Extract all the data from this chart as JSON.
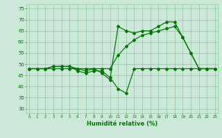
{
  "xlabel": "Humidité relative (%)",
  "bg_color": "#cce8d8",
  "grid_color": "#99ccaa",
  "line_color": "#007700",
  "x_values": [
    0,
    1,
    2,
    3,
    4,
    5,
    6,
    7,
    8,
    9,
    10,
    11,
    12,
    13,
    14,
    15,
    16,
    17,
    18,
    19,
    20,
    21,
    22,
    23
  ],
  "series1": [
    48,
    48,
    48,
    49,
    49,
    49,
    47,
    46,
    47,
    47,
    44,
    39,
    37,
    48,
    48,
    48,
    48,
    48,
    48,
    48,
    48,
    48,
    48,
    48
  ],
  "series2": [
    48,
    48,
    48,
    49,
    49,
    49,
    48,
    47,
    48,
    46,
    43,
    67,
    65,
    64,
    65,
    65,
    67,
    69,
    69,
    62,
    55,
    48,
    48,
    48
  ],
  "series3": [
    48,
    48,
    48,
    48,
    48,
    48,
    48,
    48,
    48,
    48,
    48,
    54,
    58,
    61,
    63,
    64,
    65,
    66,
    67,
    62,
    55,
    48,
    48,
    48
  ],
  "ylim": [
    28,
    77
  ],
  "yticks": [
    30,
    35,
    40,
    45,
    50,
    55,
    60,
    65,
    70,
    75
  ],
  "xticks": [
    0,
    1,
    2,
    3,
    4,
    5,
    6,
    7,
    8,
    9,
    10,
    11,
    12,
    13,
    14,
    15,
    16,
    17,
    18,
    19,
    20,
    21,
    22,
    23
  ]
}
